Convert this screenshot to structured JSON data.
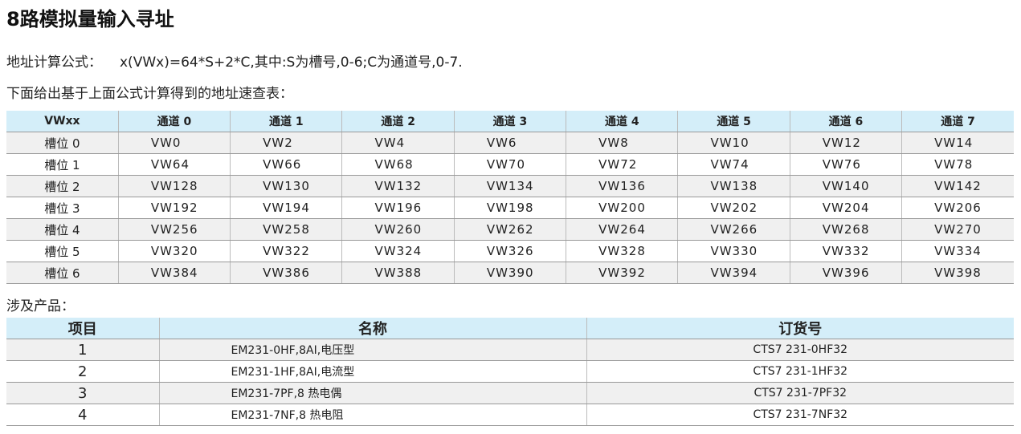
{
  "title": "8路模拟量输入寻址",
  "formula": {
    "label": "地址计算公式：",
    "expression": "x(VWx)=64*S+2*C,其中:S为槽号,0-6;C为通道号,0-7."
  },
  "subtitle": "下面给出基于上面公式计算得到的地址速查表：",
  "address_table": {
    "headers": [
      "VWxx",
      "通道 0",
      "通道 1",
      "通道 2",
      "通道 3",
      "通道 4",
      "通道 5",
      "通道 6",
      "通道 7"
    ],
    "rows": [
      [
        "槽位 0",
        "VW0",
        "VW2",
        "VW4",
        "VW6",
        "VW8",
        "VW10",
        "VW12",
        "VW14"
      ],
      [
        "槽位 1",
        "VW64",
        "VW66",
        "VW68",
        "VW70",
        "VW72",
        "VW74",
        "VW76",
        "VW78"
      ],
      [
        "槽位 2",
        "VW128",
        "VW130",
        "VW132",
        "VW134",
        "VW136",
        "VW138",
        "VW140",
        "VW142"
      ],
      [
        "槽位 3",
        "VW192",
        "VW194",
        "VW196",
        "VW198",
        "VW200",
        "VW202",
        "VW204",
        "VW206"
      ],
      [
        "槽位 4",
        "VW256",
        "VW258",
        "VW260",
        "VW262",
        "VW264",
        "VW266",
        "VW268",
        "VW270"
      ],
      [
        "槽位 5",
        "VW320",
        "VW322",
        "VW324",
        "VW326",
        "VW328",
        "VW330",
        "VW332",
        "VW334"
      ],
      [
        "槽位 6",
        "VW384",
        "VW386",
        "VW388",
        "VW390",
        "VW392",
        "VW394",
        "VW396",
        "VW398"
      ]
    ]
  },
  "products_label": "涉及产品：",
  "products_table": {
    "headers": [
      "项目",
      "名称",
      "订货号"
    ],
    "rows": [
      [
        "1",
        "EM231-0HF,8AI,电压型",
        "CTS7 231-0HF32"
      ],
      [
        "2",
        "EM231-1HF,8AI,电流型",
        "CTS7 231-1HF32"
      ],
      [
        "3",
        "EM231-7PF,8 热电偶",
        "CTS7 231-7PF32"
      ],
      [
        "4",
        "EM231-7NF,8 热电阻",
        "CTS7 231-7NF32"
      ]
    ]
  },
  "colors": {
    "header_bg": "#d4eef9",
    "alt_row_bg": "#f0f0f0"
  }
}
